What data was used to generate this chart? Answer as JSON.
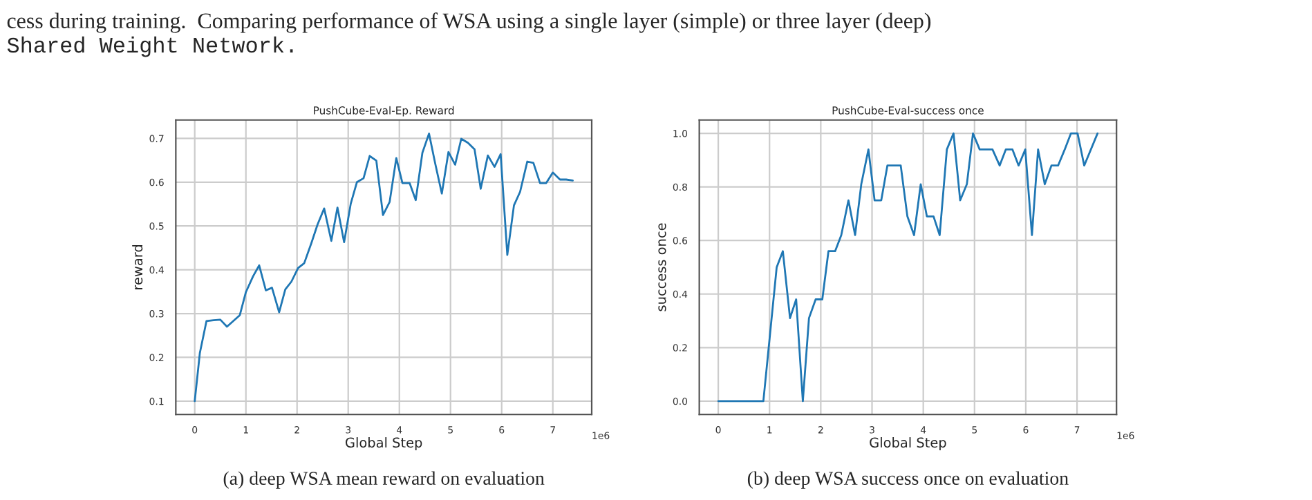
{
  "chart_data": [
    {
      "type": "line",
      "title": "PushCube-Eval-Ep. Reward",
      "xlabel": "Global Step",
      "ylabel": "reward",
      "annotations": [
        "1e6",
        "(a) deep WSA mean reward on evaluation",
        "cess during training.  Comparing performance of WSA using a single layer (simple) or three layer (deep)",
        "Shared Weight Network."
      ],
      "x": [
        0,
        0.1,
        0.23,
        0.37,
        0.5,
        0.63,
        0.88,
        1.0,
        1.14,
        1.26,
        1.39,
        1.51,
        1.65,
        1.77,
        1.89,
        2.02,
        2.14,
        2.28,
        2.4,
        2.53,
        2.67,
        2.79,
        2.92,
        3.05,
        3.17,
        3.3,
        3.42,
        3.55,
        3.68,
        3.81,
        3.94,
        4.06,
        4.2,
        4.32,
        4.45,
        4.58,
        4.7,
        4.83,
        4.96,
        5.09,
        5.21,
        5.34,
        5.47,
        5.59,
        5.73,
        5.86,
        5.98,
        6.11,
        6.24,
        6.36,
        6.5,
        6.62,
        6.75,
        6.87,
        7.0,
        7.14,
        7.26,
        7.39
      ],
      "series": [
        {
          "color": "#1f77b4",
          "values": [
            0.1,
            0.21,
            0.283,
            0.285,
            0.286,
            0.27,
            0.296,
            0.349,
            0.385,
            0.41,
            0.353,
            0.359,
            0.303,
            0.355,
            0.373,
            0.404,
            0.415,
            0.461,
            0.503,
            0.54,
            0.466,
            0.542,
            0.463,
            0.551,
            0.6,
            0.609,
            0.66,
            0.649,
            0.525,
            0.555,
            0.655,
            0.598,
            0.598,
            0.559,
            0.667,
            0.711,
            0.643,
            0.574,
            0.669,
            0.64,
            0.699,
            0.69,
            0.675,
            0.585,
            0.661,
            0.635,
            0.664,
            0.434,
            0.547,
            0.578,
            0.647,
            0.644,
            0.598,
            0.598,
            0.622,
            0.606,
            0.606,
            0.604
          ]
        }
      ],
      "xlim": [
        -0.37,
        7.76
      ],
      "ylim": [
        0.0695,
        0.742
      ],
      "xticks": [
        0,
        1,
        2,
        3,
        4,
        5,
        6,
        7
      ],
      "yticks": [
        0.1,
        0.2,
        0.3,
        0.4,
        0.5,
        0.6,
        0.7
      ],
      "grid": true
    },
    {
      "type": "line",
      "title": "PushCube-Eval-success once",
      "xlabel": "Global Step",
      "ylabel": "success once",
      "annotations": [
        "1e6",
        "(b) deep WSA success once on evaluation"
      ],
      "x": [
        0,
        0.88,
        1.01,
        1.14,
        1.26,
        1.4,
        1.52,
        1.65,
        1.77,
        1.9,
        2.03,
        2.15,
        2.28,
        2.4,
        2.54,
        2.67,
        2.79,
        2.93,
        3.05,
        3.18,
        3.3,
        3.56,
        3.69,
        3.82,
        3.95,
        4.07,
        4.2,
        4.32,
        4.46,
        4.59,
        4.72,
        4.85,
        4.97,
        5.1,
        5.35,
        5.49,
        5.61,
        5.74,
        5.86,
        5.99,
        6.12,
        6.24,
        6.37,
        6.5,
        6.63,
        6.76,
        6.88,
        7.01,
        7.14,
        7.4
      ],
      "series": [
        {
          "color": "#1f77b4",
          "values": [
            0,
            0,
            0.25,
            0.5,
            0.56,
            0.31,
            0.38,
            0,
            0.31,
            0.38,
            0.38,
            0.56,
            0.56,
            0.62,
            0.75,
            0.62,
            0.81,
            0.94,
            0.75,
            0.75,
            0.88,
            0.88,
            0.69,
            0.62,
            0.81,
            0.69,
            0.69,
            0.62,
            0.94,
            1.0,
            0.75,
            0.81,
            1.0,
            0.94,
            0.94,
            0.88,
            0.94,
            0.94,
            0.88,
            0.94,
            0.62,
            0.94,
            0.81,
            0.88,
            0.88,
            0.94,
            1.0,
            1.0,
            0.88,
            1.0
          ]
        }
      ],
      "xlim": [
        -0.37,
        7.77
      ],
      "ylim": [
        -0.05,
        1.05
      ],
      "xticks": [
        0,
        1,
        2,
        3,
        4,
        5,
        6,
        7
      ],
      "yticks": [
        {
          "value": 0,
          "label": "0.0"
        },
        0.2,
        0.4,
        0.6,
        0.8,
        {
          "value": 1,
          "label": "1.0"
        }
      ],
      "grid": true
    }
  ]
}
